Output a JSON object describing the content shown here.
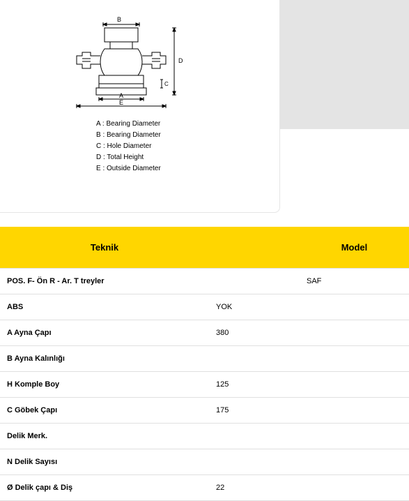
{
  "diagram": {
    "labels": {
      "A": "A",
      "B": "B",
      "C": "C",
      "D": "D",
      "E": "E"
    },
    "legend": [
      "A : Bearing Diameter",
      "B : Bearing Diameter",
      "C : Hole Diameter",
      "D : Total Height",
      "E : Outside Diameter"
    ],
    "stroke": "#000000",
    "stroke_width": 1
  },
  "table": {
    "headers": {
      "teknik": "Teknik",
      "model": "Model"
    },
    "header_bg": "#ffd600",
    "header_text": "#000000",
    "border_color": "#e0e0e0",
    "rows": [
      {
        "label": "POS. F- Ön R - Ar. T treyler",
        "value": "",
        "model": "SAF"
      },
      {
        "label": "ABS",
        "value": "YOK",
        "model": ""
      },
      {
        "label": "A Ayna Çapı",
        "value": "380",
        "model": ""
      },
      {
        "label": "B Ayna Kalınlığı",
        "value": "",
        "model": ""
      },
      {
        "label": "H Komple Boy",
        "value": "125",
        "model": ""
      },
      {
        "label": "C Göbek Çapı",
        "value": "175",
        "model": ""
      },
      {
        "label": "Delik Merk.",
        "value": "",
        "model": ""
      },
      {
        "label": "N Delik Sayısı",
        "value": "",
        "model": ""
      },
      {
        "label": "Ø Delik çapı & Diş",
        "value": "22",
        "model": ""
      }
    ]
  }
}
